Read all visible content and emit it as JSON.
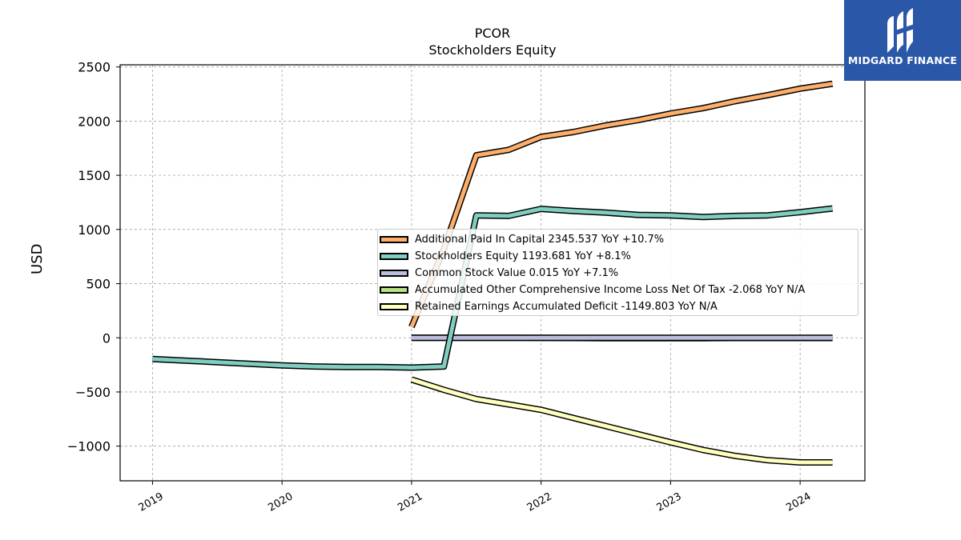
{
  "chart_data": {
    "type": "line",
    "title": "PCOR",
    "subtitle": "Stockholders  Equity",
    "xlabel": "",
    "ylabel": "USD",
    "xlim": [
      2018.75,
      2024.5
    ],
    "ylim": [
      -1320,
      2520
    ],
    "x_ticks": [
      2019,
      2020,
      2021,
      2022,
      2023,
      2024
    ],
    "x_tick_labels": [
      "2019",
      "2020",
      "2021",
      "2022",
      "2023",
      "2024"
    ],
    "y_ticks": [
      -1000,
      -500,
      0,
      500,
      1000,
      1500,
      2000,
      2500
    ],
    "y_tick_labels": [
      "−1000",
      "−500",
      "0",
      "500",
      "1000",
      "1500",
      "2000",
      "2500"
    ],
    "grid": true,
    "legend_position": "center-right",
    "series": [
      {
        "name": "Additional Paid In Capital",
        "legend": "Additional Paid In Capital  2345.537 YoY +10.7%",
        "color": "#fdae6b",
        "x": [
          2021.0,
          2021.25,
          2021.5,
          2021.75,
          2022.0,
          2022.25,
          2022.5,
          2022.75,
          2023.0,
          2023.25,
          2023.5,
          2023.75,
          2024.0,
          2024.25
        ],
        "values": [
          100,
          820,
          1685,
          1735,
          1855,
          1900,
          1960,
          2010,
          2070,
          2120,
          2185,
          2240,
          2300,
          2345
        ]
      },
      {
        "name": "Stockholders Equity",
        "legend": "Stockholders Equity  1193.681 YoY +8.1%",
        "color": "#80cdc1",
        "x": [
          2019.0,
          2019.25,
          2019.5,
          2019.75,
          2020.0,
          2020.25,
          2020.5,
          2020.75,
          2021.0,
          2021.25,
          2021.5,
          2021.75,
          2022.0,
          2022.25,
          2022.5,
          2022.75,
          2023.0,
          2023.25,
          2023.5,
          2023.75,
          2024.0,
          2024.25
        ],
        "values": [
          -195,
          -210,
          -225,
          -240,
          -255,
          -265,
          -270,
          -270,
          -275,
          -265,
          1130,
          1125,
          1190,
          1170,
          1155,
          1135,
          1130,
          1115,
          1125,
          1130,
          1160,
          1194
        ]
      },
      {
        "name": "Common Stock Value",
        "legend": "Common Stock Value  0.015 YoY +7.1%",
        "color": "#bcbddc",
        "x": [
          2021.0,
          2021.25,
          2021.5,
          2021.75,
          2022.0,
          2022.25,
          2022.5,
          2022.75,
          2023.0,
          2023.25,
          2023.5,
          2023.75,
          2024.0,
          2024.25
        ],
        "values": [
          0.01,
          0.01,
          0.014,
          0.014,
          0.014,
          0.014,
          0.014,
          0.014,
          0.014,
          0.014,
          0.015,
          0.015,
          0.015,
          0.015
        ]
      },
      {
        "name": "Accumulated Other Comprehensive Income Loss Net Of Tax",
        "legend": "Accumulated Other Comprehensive Income Loss Net Of Tax  -2.068 YoY N/A",
        "color": "#b8e186",
        "x": [
          2021.0,
          2021.25,
          2021.5,
          2021.75,
          2022.0,
          2022.25,
          2022.5,
          2022.75,
          2023.0,
          2023.25,
          2023.5,
          2023.75,
          2024.0,
          2024.25
        ],
        "values": [
          0,
          0,
          0,
          0,
          -1,
          -2,
          -3,
          -4,
          -3,
          -3,
          -2,
          -2,
          -2,
          -2
        ]
      },
      {
        "name": "Retained Earnings Accumulated Deficit",
        "legend": "Retained Earnings Accumulated Deficit  -1149.803 YoY N/A",
        "color": "#ffffbf",
        "x": [
          2021.0,
          2021.25,
          2021.5,
          2021.75,
          2022.0,
          2022.25,
          2022.5,
          2022.75,
          2023.0,
          2023.25,
          2023.5,
          2023.75,
          2024.0,
          2024.25
        ],
        "values": [
          -385,
          -480,
          -565,
          -615,
          -665,
          -740,
          -815,
          -890,
          -965,
          -1035,
          -1090,
          -1130,
          -1150,
          -1150
        ]
      }
    ]
  },
  "watermark": {
    "text": "MIDGARD FINANCE",
    "background": "#2b57a8"
  }
}
